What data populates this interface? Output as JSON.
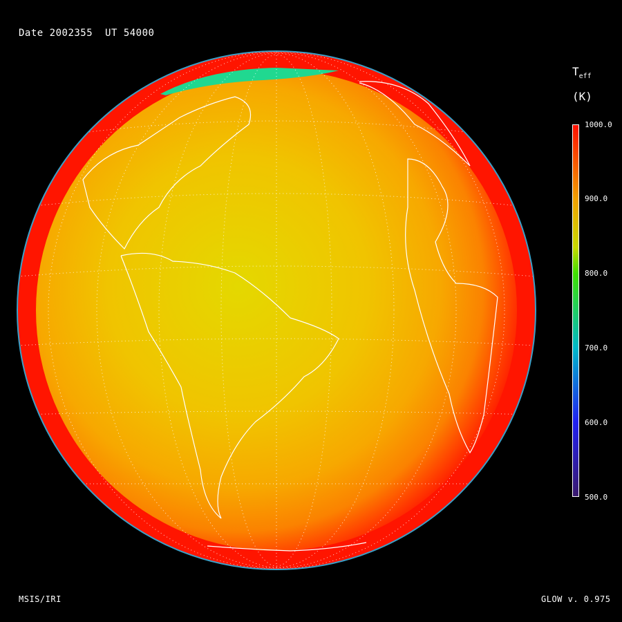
{
  "header": {
    "date_label": "Date",
    "date_value": "2002355",
    "ut_label": "UT",
    "ut_value": "54000"
  },
  "colorbar": {
    "title_main": "T",
    "title_sub": "eff",
    "unit": "(K)",
    "ticks": [
      "1000.0",
      "900.0",
      "800.0",
      "700.0",
      "600.0",
      "500.0"
    ],
    "range": [
      500,
      1000
    ],
    "colors": {
      "500": "#3a1a6e",
      "600": "#2020f0",
      "700": "#00b8c8",
      "800": "#40e000",
      "900": "#f0a000",
      "1000": "#ff1000"
    }
  },
  "map": {
    "projection": "orthographic globe",
    "field": "effective temperature",
    "colors": {
      "rim": "#ff1a00",
      "center": "#e6d800",
      "mid": "#f5b000",
      "edge": "#ff6a00",
      "aurora": "#20d890",
      "coastline": "#ffffff",
      "graticule": "#ffffff"
    }
  },
  "footer": {
    "left": "MSIS/IRI",
    "right": "GLOW v. 0.975"
  }
}
